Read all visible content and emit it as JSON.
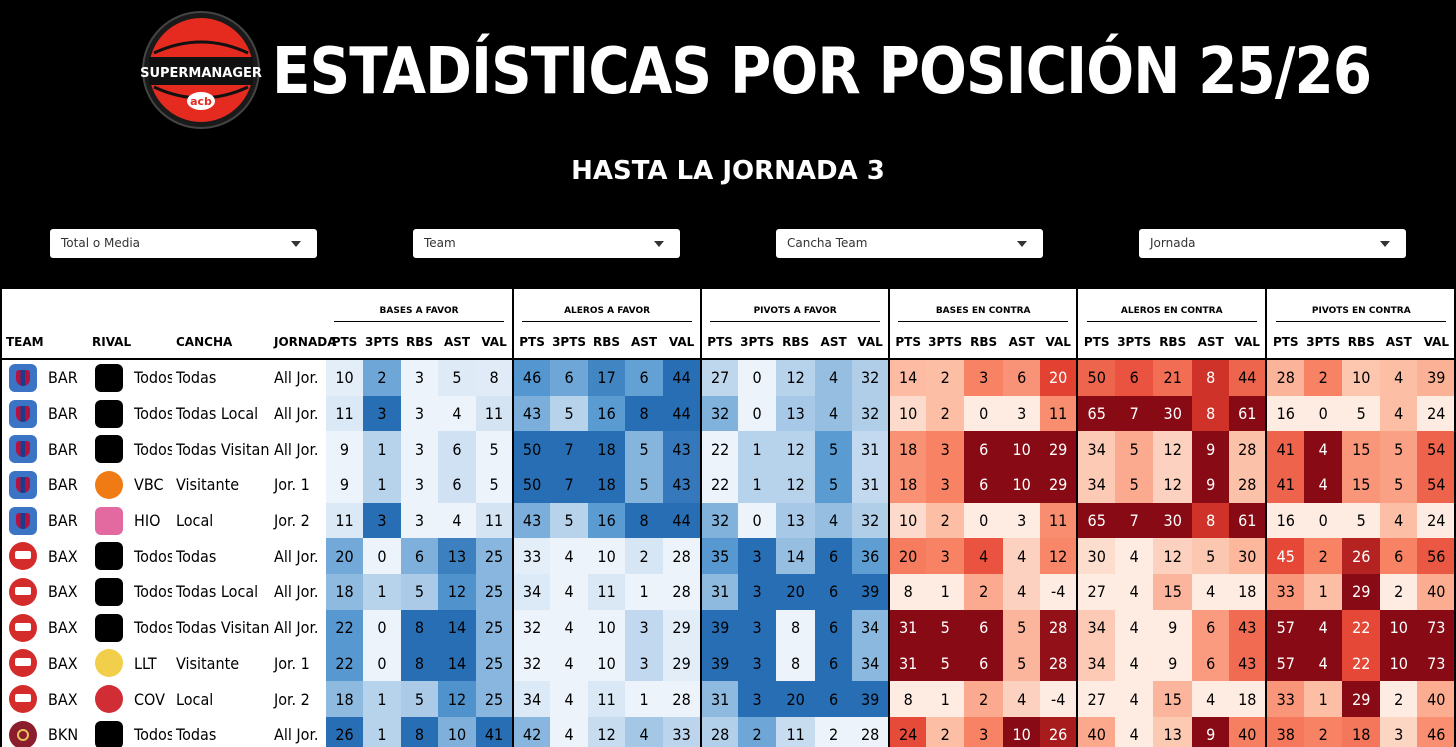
{
  "header": {
    "logo_text": "SUPERMANAGER",
    "logo_sub": "acb",
    "title": "ESTADÍSTICAS POR POSICIÓN 25/26",
    "subtitle": "HASTA LA JORNADA 3"
  },
  "filters": [
    {
      "placeholder": "Total o Media"
    },
    {
      "placeholder": "Team"
    },
    {
      "placeholder": "Cancha Team"
    },
    {
      "placeholder": "Jornada"
    }
  ],
  "table": {
    "groups": [
      "BASES A FAVOR",
      "ALEROS A FAVOR",
      "PIVOTS A FAVOR",
      "BASES EN CONTRA",
      "ALEROS EN CONTRA",
      "PIVOTS EN CONTRA"
    ],
    "info_columns": [
      "TEAM",
      "RIVAL",
      "CANCHA",
      "JORNADA"
    ],
    "stat_columns": [
      "PTS",
      "3PTS",
      "RBS",
      "AST",
      "VAL"
    ],
    "rows": [
      {
        "team": "BAR",
        "team_icon": "bar",
        "rival_icon": "acb",
        "rival": "Todos",
        "cancha": "Todas",
        "jornada": "All Jor.",
        "stats": [
          [
            10,
            2,
            3,
            5,
            8
          ],
          [
            46,
            6,
            17,
            6,
            44
          ],
          [
            27,
            0,
            12,
            4,
            32
          ],
          [
            14,
            2,
            3,
            6,
            20
          ],
          [
            50,
            6,
            21,
            8,
            44
          ],
          [
            28,
            2,
            10,
            4,
            39
          ]
        ]
      },
      {
        "team": "BAR",
        "team_icon": "bar",
        "rival_icon": "acb",
        "rival": "Todos",
        "cancha": "Todas Local",
        "jornada": "All Jor.",
        "stats": [
          [
            11,
            3,
            3,
            4,
            11
          ],
          [
            43,
            5,
            16,
            8,
            44
          ],
          [
            32,
            0,
            13,
            4,
            32
          ],
          [
            10,
            2,
            0,
            3,
            11
          ],
          [
            65,
            7,
            30,
            8,
            61
          ],
          [
            16,
            0,
            5,
            4,
            24
          ]
        ]
      },
      {
        "team": "BAR",
        "team_icon": "bar",
        "rival_icon": "acb",
        "rival": "Todos",
        "cancha": "Todas Visitante",
        "jornada": "All Jor.",
        "stats": [
          [
            9,
            1,
            3,
            6,
            5
          ],
          [
            50,
            7,
            18,
            5,
            43
          ],
          [
            22,
            1,
            12,
            5,
            31
          ],
          [
            18,
            3,
            6,
            10,
            29
          ],
          [
            34,
            5,
            12,
            9,
            28
          ],
          [
            41,
            4,
            15,
            5,
            54
          ]
        ]
      },
      {
        "team": "BAR",
        "team_icon": "bar",
        "rival_icon": "vbc",
        "rival": "VBC",
        "cancha": "Visitante",
        "jornada": "Jor. 1",
        "stats": [
          [
            9,
            1,
            3,
            6,
            5
          ],
          [
            50,
            7,
            18,
            5,
            43
          ],
          [
            22,
            1,
            12,
            5,
            31
          ],
          [
            18,
            3,
            6,
            10,
            29
          ],
          [
            34,
            5,
            12,
            9,
            28
          ],
          [
            41,
            4,
            15,
            5,
            54
          ]
        ]
      },
      {
        "team": "BAR",
        "team_icon": "bar",
        "rival_icon": "hio",
        "rival": "HIO",
        "cancha": "Local",
        "jornada": "Jor. 2",
        "stats": [
          [
            11,
            3,
            3,
            4,
            11
          ],
          [
            43,
            5,
            16,
            8,
            44
          ],
          [
            32,
            0,
            13,
            4,
            32
          ],
          [
            10,
            2,
            0,
            3,
            11
          ],
          [
            65,
            7,
            30,
            8,
            61
          ],
          [
            16,
            0,
            5,
            4,
            24
          ]
        ]
      },
      {
        "team": "BAX",
        "team_icon": "bax",
        "rival_icon": "acb",
        "rival": "Todos",
        "cancha": "Todas",
        "jornada": "All Jor.",
        "stats": [
          [
            20,
            0,
            6,
            13,
            25
          ],
          [
            33,
            4,
            10,
            2,
            28
          ],
          [
            35,
            3,
            14,
            6,
            36
          ],
          [
            20,
            3,
            4,
            4,
            12
          ],
          [
            30,
            4,
            12,
            5,
            30
          ],
          [
            45,
            2,
            26,
            6,
            56
          ]
        ]
      },
      {
        "team": "BAX",
        "team_icon": "bax",
        "rival_icon": "acb",
        "rival": "Todos",
        "cancha": "Todas Local",
        "jornada": "All Jor.",
        "stats": [
          [
            18,
            1,
            5,
            12,
            25
          ],
          [
            34,
            4,
            11,
            1,
            28
          ],
          [
            31,
            3,
            20,
            6,
            39
          ],
          [
            8,
            1,
            2,
            4,
            -4
          ],
          [
            27,
            4,
            15,
            4,
            18
          ],
          [
            33,
            1,
            29,
            2,
            40
          ]
        ]
      },
      {
        "team": "BAX",
        "team_icon": "bax",
        "rival_icon": "acb",
        "rival": "Todos",
        "cancha": "Todas Visitante",
        "jornada": "All Jor.",
        "stats": [
          [
            22,
            0,
            8,
            14,
            25
          ],
          [
            32,
            4,
            10,
            3,
            29
          ],
          [
            39,
            3,
            8,
            6,
            34
          ],
          [
            31,
            5,
            6,
            5,
            28
          ],
          [
            34,
            4,
            9,
            6,
            43
          ],
          [
            57,
            4,
            22,
            10,
            73
          ]
        ]
      },
      {
        "team": "BAX",
        "team_icon": "bax",
        "rival_icon": "llt",
        "rival": "LLT",
        "cancha": "Visitante",
        "jornada": "Jor. 1",
        "stats": [
          [
            22,
            0,
            8,
            14,
            25
          ],
          [
            32,
            4,
            10,
            3,
            29
          ],
          [
            39,
            3,
            8,
            6,
            34
          ],
          [
            31,
            5,
            6,
            5,
            28
          ],
          [
            34,
            4,
            9,
            6,
            43
          ],
          [
            57,
            4,
            22,
            10,
            73
          ]
        ]
      },
      {
        "team": "BAX",
        "team_icon": "bax",
        "rival_icon": "cov",
        "rival": "COV",
        "cancha": "Local",
        "jornada": "Jor. 2",
        "stats": [
          [
            18,
            1,
            5,
            12,
            25
          ],
          [
            34,
            4,
            11,
            1,
            28
          ],
          [
            31,
            3,
            20,
            6,
            39
          ],
          [
            8,
            1,
            2,
            4,
            -4
          ],
          [
            27,
            4,
            15,
            4,
            18
          ],
          [
            33,
            1,
            29,
            2,
            40
          ]
        ]
      },
      {
        "team": "BKN",
        "team_icon": "bkn",
        "rival_icon": "acb",
        "rival": "Todos",
        "cancha": "Todas",
        "jornada": "All Jor.",
        "stats": [
          [
            26,
            1,
            8,
            10,
            41
          ],
          [
            42,
            4,
            12,
            4,
            33
          ],
          [
            28,
            2,
            11,
            2,
            28
          ],
          [
            24,
            2,
            3,
            10,
            26
          ],
          [
            40,
            4,
            13,
            9,
            40
          ],
          [
            38,
            2,
            18,
            3,
            46
          ]
        ]
      }
    ]
  }
}
